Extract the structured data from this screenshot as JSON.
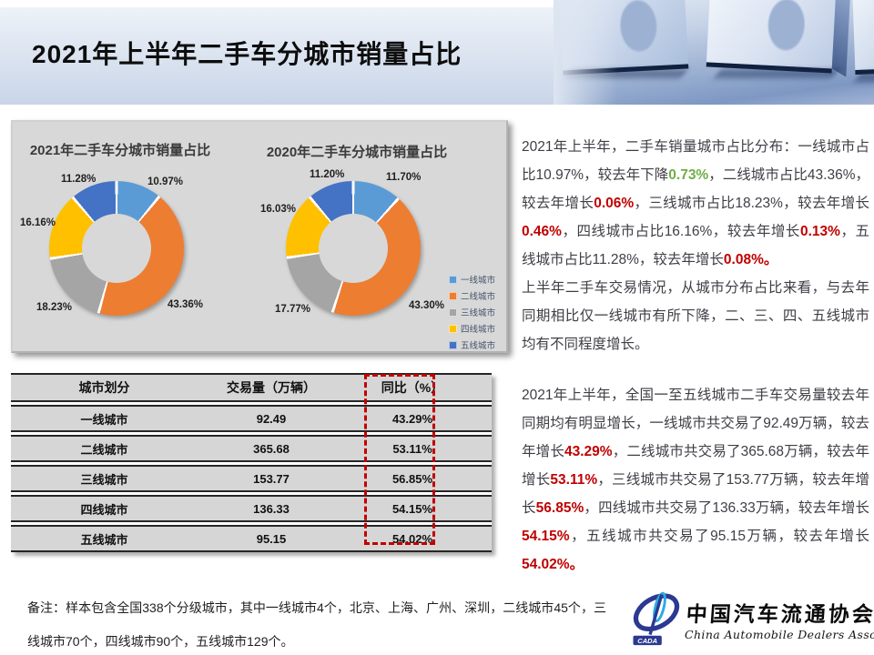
{
  "header": {
    "title": "2021年上半年二手车分城市销量占比"
  },
  "chart_data": [
    {
      "type": "pie",
      "variant": "donut",
      "title": "2021年二手车分城市销量占比",
      "categories": [
        "一线城市",
        "二线城市",
        "三线城市",
        "四线城市",
        "五线城市"
      ],
      "values": [
        10.97,
        43.36,
        18.23,
        16.16,
        11.28
      ],
      "labels": [
        "10.97%",
        "43.36%",
        "18.23%",
        "16.16%",
        "11.28%"
      ],
      "colors": [
        "#5B9BD5",
        "#ED7D31",
        "#A5A5A5",
        "#FFC000",
        "#4472C4"
      ],
      "start_angle_deg": 0,
      "direction": "clockwise",
      "legend_position": "right"
    },
    {
      "type": "pie",
      "variant": "donut",
      "title": "2020年二手车分城市销量占比",
      "categories": [
        "一线城市",
        "二线城市",
        "三线城市",
        "四线城市",
        "五线城市"
      ],
      "values": [
        11.7,
        43.3,
        17.77,
        16.03,
        11.2
      ],
      "labels": [
        "11.70%",
        "43.30%",
        "17.77%",
        "16.03%",
        "11.20%"
      ],
      "colors": [
        "#5B9BD5",
        "#ED7D31",
        "#A5A5A5",
        "#FFC000",
        "#4472C4"
      ],
      "start_angle_deg": 0,
      "direction": "clockwise",
      "legend_position": "right"
    }
  ],
  "table": {
    "headers": [
      "城市划分",
      "交易量（万辆）",
      "同比（%）"
    ],
    "rows": [
      [
        "一线城市",
        "92.49",
        "43.29%"
      ],
      [
        "二线城市",
        "365.68",
        "53.11%"
      ],
      [
        "三线城市",
        "153.77",
        "56.85%"
      ],
      [
        "四线城市",
        "136.33",
        "54.15%"
      ],
      [
        "五线城市",
        "95.15",
        "54.02%"
      ]
    ],
    "highlight_column": "同比（%）"
  },
  "analysis": {
    "block1_p1": [
      {
        "t": "2021年上半年，二手车销量城市占比分布：一线城市占比10.97%，较去年下降",
        "c": "n"
      },
      {
        "t": "0.73%",
        "c": "green"
      },
      {
        "t": "，二线城市占比43.36%，较去年增长",
        "c": "n"
      },
      {
        "t": "0.06%",
        "c": "red"
      },
      {
        "t": "，三线城市占比18.23%，较去年增长",
        "c": "n"
      },
      {
        "t": "0.46%",
        "c": "red"
      },
      {
        "t": "，四线城市占比16.16%，较去年增长",
        "c": "n"
      },
      {
        "t": "0.13%",
        "c": "red"
      },
      {
        "t": "，五线城市占比11.28%，较去年增长",
        "c": "n"
      },
      {
        "t": "0.08%。",
        "c": "red"
      }
    ],
    "block1_p2": [
      {
        "t": "上半年二手车交易情况，从城市分布占比来看，与去年同期相比仅一线城市有所下降，二、三、四、五线城市均有不同程度增长。",
        "c": "n"
      }
    ],
    "block2_p1": [
      {
        "t": "2021年上半年，全国一至五线城市二手车交易量较去年同期均有明显增长，一线城市共交易了92.49万辆，较去年增长",
        "c": "n"
      },
      {
        "t": "43.29%",
        "c": "red"
      },
      {
        "t": "，二线城市共交易了365.68万辆，较去年增长",
        "c": "n"
      },
      {
        "t": "53.11%",
        "c": "red"
      },
      {
        "t": "，三线城市共交易了153.77万辆，较去年增长",
        "c": "n"
      },
      {
        "t": "56.85%",
        "c": "red"
      },
      {
        "t": "，四线城市共交易了136.33万辆，较去年增长",
        "c": "n"
      },
      {
        "t": "54.15%",
        "c": "red"
      },
      {
        "t": "，五线城市共交易了95.15万辆，较去年增长",
        "c": "n"
      },
      {
        "t": "54.02%。",
        "c": "red"
      }
    ]
  },
  "footnote": "备注：样本包含全国338个分级城市，其中一线城市4个，北京、上海、广州、深圳，二线城市45个，三线城市70个，四线城市90个，五线城市129个。",
  "logo": {
    "abbr": "CADA",
    "name_cn": "中国汽车流通协会",
    "name_en": "China Automobile Dealers Association"
  },
  "colors": {
    "accent_red": "#C00000",
    "accent_green": "#70AD47",
    "panel_bg": "#D8D8D8"
  }
}
